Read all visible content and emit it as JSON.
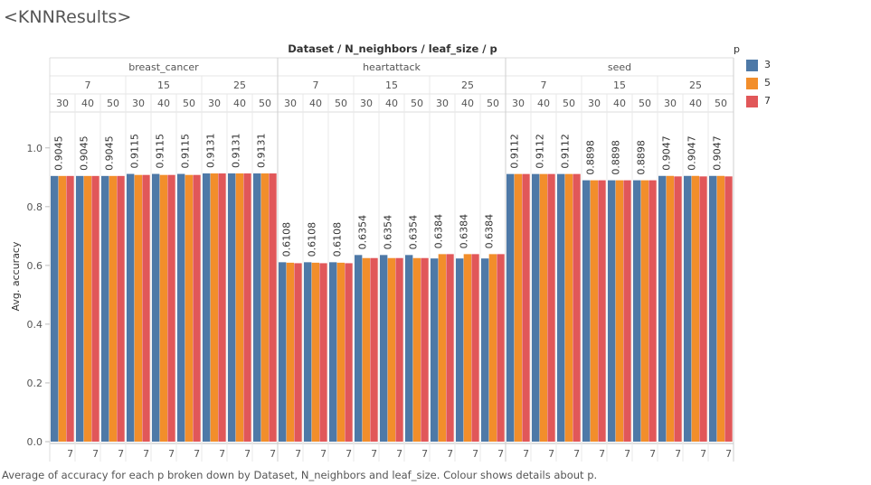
{
  "page": {
    "title": "<KNNResults>",
    "caption": "Average of accuracy for each p broken down by Dataset, N_neighbors and leaf_size.  Colour shows details about p."
  },
  "legend": {
    "title": "p",
    "items": [
      {
        "label": "3",
        "color": "#4e79a7"
      },
      {
        "label": "5",
        "color": "#f28e2b"
      },
      {
        "label": "7",
        "color": "#e15759"
      }
    ]
  },
  "chart_data": {
    "type": "bar",
    "title": "Dataset / N_neighbors / leaf_size / p",
    "xlabel": "",
    "ylabel": "Avg. accuracy",
    "ylim": [
      0,
      1.07
    ],
    "yticks": [
      "0.0",
      "0.2",
      "0.4",
      "0.6",
      "0.8",
      "1.0"
    ],
    "grid": false,
    "legend_position": "top-right",
    "x_tick_label": "7",
    "datasets": [
      "breast_cancer",
      "heartattack",
      "seed"
    ],
    "n_neighbors": [
      "7",
      "15",
      "25"
    ],
    "leaf_sizes": [
      "30",
      "40",
      "50"
    ],
    "p_values": [
      "3",
      "5",
      "7"
    ],
    "series": [
      {
        "name": "3",
        "color": "#4e79a7",
        "values": [
          0.9045,
          0.9045,
          0.9045,
          0.9115,
          0.9115,
          0.9115,
          0.9131,
          0.9131,
          0.9131,
          0.6108,
          0.6108,
          0.6108,
          0.6354,
          0.6354,
          0.6354,
          0.6236,
          0.6236,
          0.6236,
          0.9112,
          0.9112,
          0.9112,
          0.8898,
          0.8898,
          0.8898,
          0.9047,
          0.9047,
          0.9047
        ]
      },
      {
        "name": "5",
        "color": "#f28e2b",
        "values": [
          0.9045,
          0.9045,
          0.9045,
          0.908,
          0.908,
          0.908,
          0.9131,
          0.9131,
          0.9131,
          0.6092,
          0.6092,
          0.6092,
          0.625,
          0.625,
          0.625,
          0.6384,
          0.6384,
          0.6384,
          0.9112,
          0.9112,
          0.9112,
          0.8898,
          0.8898,
          0.8898,
          0.9047,
          0.9047,
          0.9047
        ]
      },
      {
        "name": "7",
        "color": "#e15759",
        "values": [
          0.9045,
          0.9045,
          0.9045,
          0.908,
          0.908,
          0.908,
          0.9131,
          0.9131,
          0.9131,
          0.6075,
          0.6075,
          0.6075,
          0.625,
          0.625,
          0.625,
          0.6384,
          0.6384,
          0.6384,
          0.9112,
          0.9112,
          0.9112,
          0.8898,
          0.8898,
          0.8898,
          0.903,
          0.903,
          0.903
        ]
      }
    ],
    "bar_labels": [
      "0.9045",
      "0.9045",
      "0.9045",
      "0.9115",
      "0.9115",
      "0.9115",
      "0.9131",
      "0.9131",
      "0.9131",
      "0.6108",
      "0.6108",
      "0.6108",
      "0.6354",
      "0.6354",
      "0.6354",
      "0.6384",
      "0.6384",
      "0.6384",
      "0.9112",
      "0.9112",
      "0.9112",
      "0.8898",
      "0.8898",
      "0.8898",
      "0.9047",
      "0.9047",
      "0.9047"
    ]
  }
}
